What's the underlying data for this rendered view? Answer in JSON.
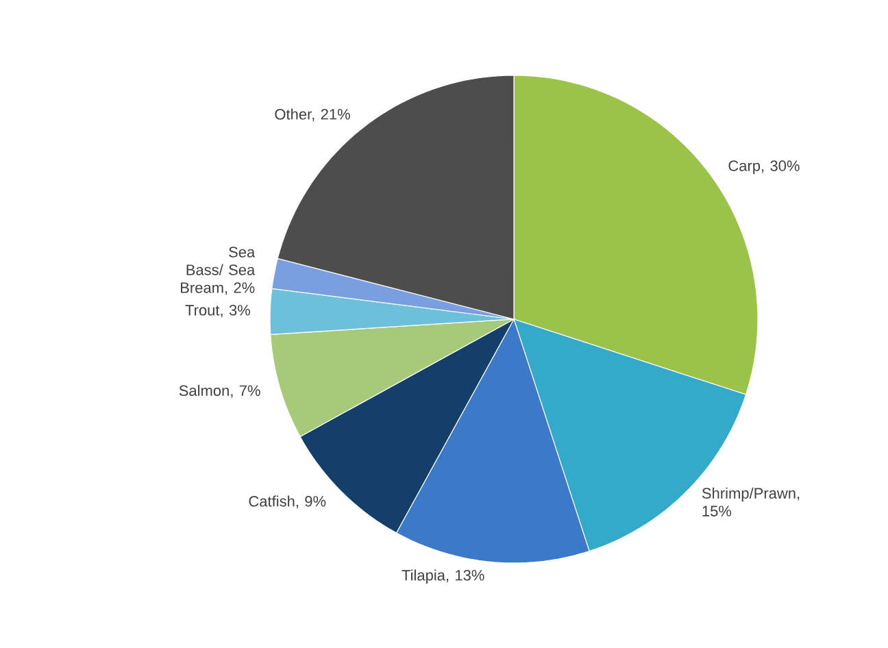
{
  "chart_data": {
    "type": "pie",
    "categories": [
      "Carp, 30%",
      "Shrimp/Prawn, 15%",
      "Tilapia, 13%",
      "Catfish, 9%",
      "Salmon, 7%",
      "Trout, 3%",
      "Sea Bass/ Sea Bream, 2%",
      "Other, 21%"
    ],
    "values": [
      30,
      15,
      13,
      9,
      7,
      3,
      2,
      21
    ],
    "colors": [
      "#9bc34a",
      "#35a9c9",
      "#3c79c8",
      "#143f6b",
      "#a6c97a",
      "#6cc0da",
      "#7a9fe0",
      "#4d4d4d"
    ]
  }
}
